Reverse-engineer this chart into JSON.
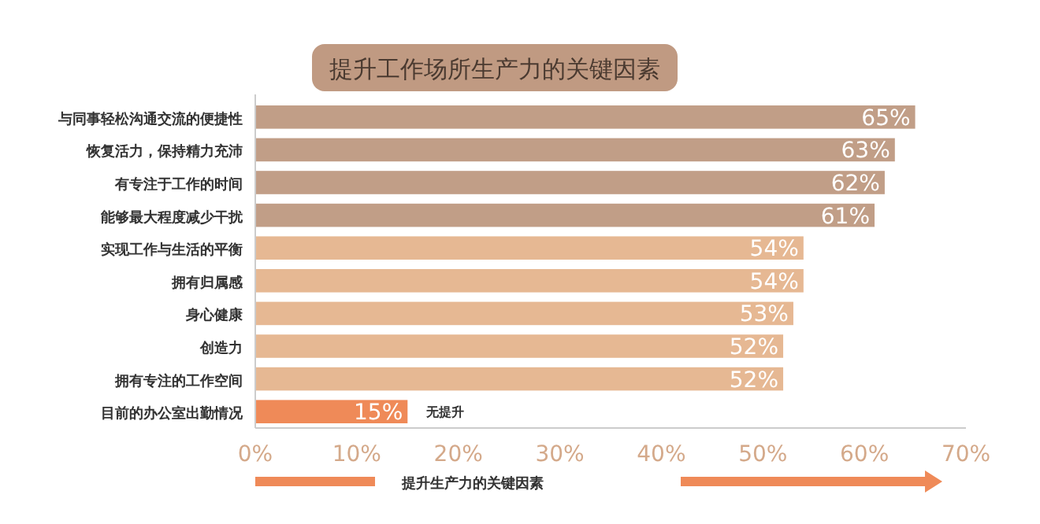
{
  "chart_data": {
    "type": "bar",
    "orientation": "horizontal",
    "title": "提升工作场所生产力的关键因素",
    "xlabel": "提升生产力的关键因素",
    "categories": [
      "与同事轻松沟通交流的便捷性",
      "恢复活力，保持精力充沛",
      "有专注于工作的时间",
      "能够最大程度减少干扰",
      "实现工作与生活的平衡",
      "拥有归属感",
      "身心健康",
      "创造力",
      "拥有专注的工作空间",
      "目前的办公室出勤情况"
    ],
    "values": [
      65,
      63,
      62,
      61,
      54,
      54,
      53,
      52,
      52,
      15
    ],
    "value_labels": [
      "65%",
      "63%",
      "62%",
      "61%",
      "54%",
      "54%",
      "53%",
      "52%",
      "52%",
      "15%"
    ],
    "colors": [
      "#c19e87",
      "#c19e87",
      "#c19e87",
      "#c19e87",
      "#e6b893",
      "#e6b893",
      "#e6b893",
      "#e6b893",
      "#e6b893",
      "#ef8a58"
    ],
    "xlim": [
      0,
      70
    ],
    "xticks": [
      {
        "value": 0,
        "label": "0%"
      },
      {
        "value": 10,
        "label": "10%"
      },
      {
        "value": 20,
        "label": "20%"
      },
      {
        "value": 30,
        "label": "30%"
      },
      {
        "value": 40,
        "label": "40%"
      },
      {
        "value": 50,
        "label": "50%"
      },
      {
        "value": 60,
        "label": "60%"
      },
      {
        "value": 70,
        "label": "70%"
      }
    ],
    "annotations": [
      {
        "text": "无提升",
        "x": 15,
        "y": "目前的办公室出勤情况"
      }
    ],
    "grid": false
  }
}
